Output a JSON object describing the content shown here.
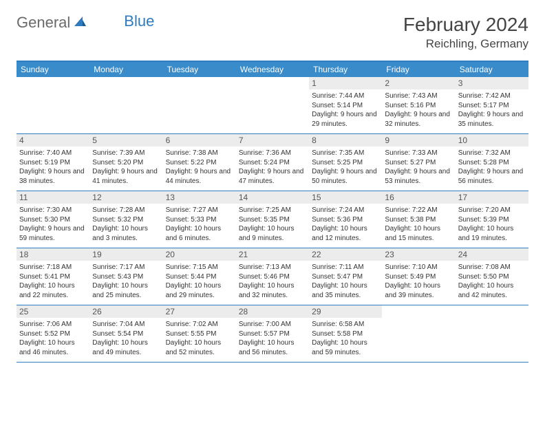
{
  "brand": {
    "part1": "General",
    "part2": "Blue"
  },
  "title": "February 2024",
  "location": "Reichling, Germany",
  "colors": {
    "header_bg": "#3a8bc9",
    "border": "#2f7bbf",
    "daynum_bg": "#ececec",
    "text": "#333333"
  },
  "weekdays": [
    "Sunday",
    "Monday",
    "Tuesday",
    "Wednesday",
    "Thursday",
    "Friday",
    "Saturday"
  ],
  "weeks": [
    [
      null,
      null,
      null,
      null,
      {
        "n": "1",
        "sr": "7:44 AM",
        "ss": "5:14 PM",
        "dl": "9 hours and 29 minutes."
      },
      {
        "n": "2",
        "sr": "7:43 AM",
        "ss": "5:16 PM",
        "dl": "9 hours and 32 minutes."
      },
      {
        "n": "3",
        "sr": "7:42 AM",
        "ss": "5:17 PM",
        "dl": "9 hours and 35 minutes."
      }
    ],
    [
      {
        "n": "4",
        "sr": "7:40 AM",
        "ss": "5:19 PM",
        "dl": "9 hours and 38 minutes."
      },
      {
        "n": "5",
        "sr": "7:39 AM",
        "ss": "5:20 PM",
        "dl": "9 hours and 41 minutes."
      },
      {
        "n": "6",
        "sr": "7:38 AM",
        "ss": "5:22 PM",
        "dl": "9 hours and 44 minutes."
      },
      {
        "n": "7",
        "sr": "7:36 AM",
        "ss": "5:24 PM",
        "dl": "9 hours and 47 minutes."
      },
      {
        "n": "8",
        "sr": "7:35 AM",
        "ss": "5:25 PM",
        "dl": "9 hours and 50 minutes."
      },
      {
        "n": "9",
        "sr": "7:33 AM",
        "ss": "5:27 PM",
        "dl": "9 hours and 53 minutes."
      },
      {
        "n": "10",
        "sr": "7:32 AM",
        "ss": "5:28 PM",
        "dl": "9 hours and 56 minutes."
      }
    ],
    [
      {
        "n": "11",
        "sr": "7:30 AM",
        "ss": "5:30 PM",
        "dl": "9 hours and 59 minutes."
      },
      {
        "n": "12",
        "sr": "7:28 AM",
        "ss": "5:32 PM",
        "dl": "10 hours and 3 minutes."
      },
      {
        "n": "13",
        "sr": "7:27 AM",
        "ss": "5:33 PM",
        "dl": "10 hours and 6 minutes."
      },
      {
        "n": "14",
        "sr": "7:25 AM",
        "ss": "5:35 PM",
        "dl": "10 hours and 9 minutes."
      },
      {
        "n": "15",
        "sr": "7:24 AM",
        "ss": "5:36 PM",
        "dl": "10 hours and 12 minutes."
      },
      {
        "n": "16",
        "sr": "7:22 AM",
        "ss": "5:38 PM",
        "dl": "10 hours and 15 minutes."
      },
      {
        "n": "17",
        "sr": "7:20 AM",
        "ss": "5:39 PM",
        "dl": "10 hours and 19 minutes."
      }
    ],
    [
      {
        "n": "18",
        "sr": "7:18 AM",
        "ss": "5:41 PM",
        "dl": "10 hours and 22 minutes."
      },
      {
        "n": "19",
        "sr": "7:17 AM",
        "ss": "5:43 PM",
        "dl": "10 hours and 25 minutes."
      },
      {
        "n": "20",
        "sr": "7:15 AM",
        "ss": "5:44 PM",
        "dl": "10 hours and 29 minutes."
      },
      {
        "n": "21",
        "sr": "7:13 AM",
        "ss": "5:46 PM",
        "dl": "10 hours and 32 minutes."
      },
      {
        "n": "22",
        "sr": "7:11 AM",
        "ss": "5:47 PM",
        "dl": "10 hours and 35 minutes."
      },
      {
        "n": "23",
        "sr": "7:10 AM",
        "ss": "5:49 PM",
        "dl": "10 hours and 39 minutes."
      },
      {
        "n": "24",
        "sr": "7:08 AM",
        "ss": "5:50 PM",
        "dl": "10 hours and 42 minutes."
      }
    ],
    [
      {
        "n": "25",
        "sr": "7:06 AM",
        "ss": "5:52 PM",
        "dl": "10 hours and 46 minutes."
      },
      {
        "n": "26",
        "sr": "7:04 AM",
        "ss": "5:54 PM",
        "dl": "10 hours and 49 minutes."
      },
      {
        "n": "27",
        "sr": "7:02 AM",
        "ss": "5:55 PM",
        "dl": "10 hours and 52 minutes."
      },
      {
        "n": "28",
        "sr": "7:00 AM",
        "ss": "5:57 PM",
        "dl": "10 hours and 56 minutes."
      },
      {
        "n": "29",
        "sr": "6:58 AM",
        "ss": "5:58 PM",
        "dl": "10 hours and 59 minutes."
      },
      null,
      null
    ]
  ],
  "labels": {
    "sunrise": "Sunrise: ",
    "sunset": "Sunset: ",
    "daylight": "Daylight: "
  }
}
